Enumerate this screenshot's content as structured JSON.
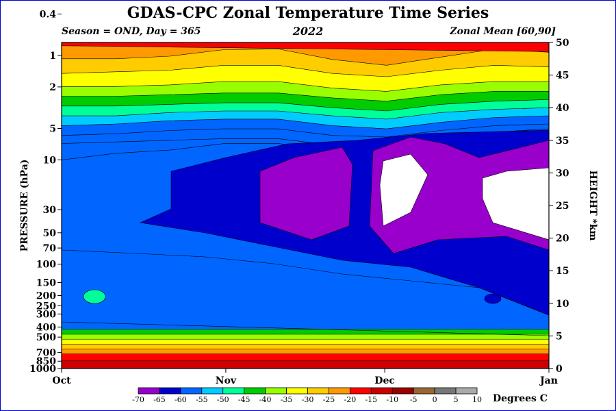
{
  "title": "GDAS-CPC Zonal Temperature Time Series",
  "season_label": "Season = OND, Day = 365",
  "year": "2022",
  "zonal_label": "Zonal Mean [60,90]",
  "chart_data": {
    "type": "heatmap",
    "title": "GDAS-CPC Zonal Temperature Time Series",
    "ylabel": "PRESSURE (hPa)",
    "y2label": "HEIGHT *km",
    "xlabel": "",
    "x_ticks": [
      "Oct",
      "Nov",
      "Dec",
      "Jan"
    ],
    "y_ticks": [
      0.4,
      1,
      2,
      5,
      10,
      30,
      50,
      70,
      100,
      150,
      200,
      250,
      300,
      400,
      500,
      700,
      850,
      1000
    ],
    "y2_ticks": [
      0,
      5,
      10,
      15,
      20,
      25,
      30,
      35,
      40,
      45,
      50
    ],
    "y2lim": [
      0,
      50
    ],
    "y_scale": "log-pressure",
    "colorbar_label": "Degrees C",
    "colorbar_ticks": [
      -70,
      -65,
      -60,
      -55,
      -50,
      -45,
      -40,
      -35,
      -30,
      -25,
      -20,
      -15,
      -10,
      -5,
      0,
      5,
      10
    ],
    "colors": [
      "#9900cc",
      "#0000cc",
      "#0066ff",
      "#00ccff",
      "#00ff99",
      "#00cc00",
      "#99ff00",
      "#ffff00",
      "#ffcc00",
      "#ff9900",
      "#ff0000",
      "#cc0000",
      "#990000",
      "#996633",
      "#777777",
      "#aaaaaa"
    ],
    "cold_region_color": "#ffffff",
    "grid": false
  }
}
